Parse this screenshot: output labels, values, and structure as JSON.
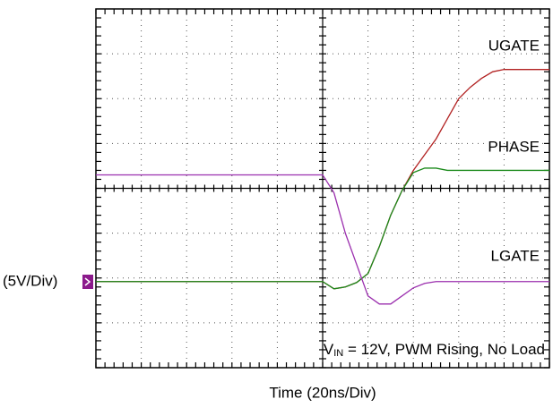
{
  "chart_data": {
    "type": "line",
    "x_label": "Time  (20ns/Div)",
    "scale_label": "(5V/Div)",
    "annotation": {
      "parts": [
        "V",
        "IN",
        " = 12V, PWM Rising, No Load"
      ]
    },
    "xlim": [
      0,
      10
    ],
    "ylim": [
      0,
      8
    ],
    "grid": true,
    "x": [
      0,
      1,
      2,
      3,
      4,
      5,
      5.25,
      5.5,
      5.75,
      6,
      6.25,
      6.5,
      6.75,
      7,
      7.25,
      7.5,
      7.75,
      8,
      8.25,
      8.5,
      8.75,
      9,
      9.5,
      10
    ],
    "series": [
      {
        "name": "UGATE",
        "color": "#b22222",
        "values": [
          1.92,
          1.92,
          1.92,
          1.92,
          1.92,
          1.92,
          1.76,
          1.8,
          1.9,
          2.1,
          2.7,
          3.4,
          3.95,
          4.4,
          4.75,
          5.1,
          5.55,
          6.0,
          6.25,
          6.45,
          6.6,
          6.65,
          6.65,
          6.65
        ]
      },
      {
        "name": "PHASE",
        "color": "#1a8a1a",
        "values": [
          1.92,
          1.92,
          1.92,
          1.92,
          1.92,
          1.92,
          1.76,
          1.8,
          1.9,
          2.1,
          2.7,
          3.4,
          3.95,
          4.35,
          4.45,
          4.45,
          4.4,
          4.4,
          4.4,
          4.4,
          4.4,
          4.4,
          4.4,
          4.4
        ]
      },
      {
        "name": "LGATE",
        "color": "#9b2fae",
        "values": [
          4.3,
          4.3,
          4.3,
          4.3,
          4.3,
          4.3,
          3.9,
          3.0,
          2.3,
          1.6,
          1.42,
          1.42,
          1.6,
          1.78,
          1.88,
          1.92,
          1.92,
          1.92,
          1.92,
          1.92,
          1.92,
          1.92,
          1.92,
          1.92
        ]
      }
    ]
  }
}
